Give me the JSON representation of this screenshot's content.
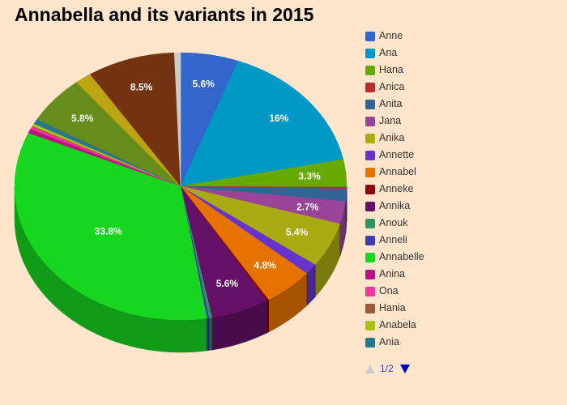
{
  "chart_data": {
    "type": "pie",
    "title": "Annabella and its variants in 2015",
    "three_d": true,
    "legend_position": "right",
    "slices": [
      {
        "name": "Anne",
        "value": 5.6,
        "color": "#3366cc",
        "label": "5.6%"
      },
      {
        "name": "Ana",
        "value": 16.0,
        "color": "#0099c6",
        "label": "16%"
      },
      {
        "name": "Hana",
        "value": 3.3,
        "color": "#66aa00",
        "label": "3.3%"
      },
      {
        "name": "Anica",
        "value": 0.2,
        "color": "#b82e2e",
        "label": ""
      },
      {
        "name": "Anita",
        "value": 1.5,
        "color": "#316395",
        "label": ""
      },
      {
        "name": "Jana",
        "value": 2.7,
        "color": "#994499",
        "label": "2.7%"
      },
      {
        "name": "Anika",
        "value": 5.4,
        "color": "#aaaa11",
        "label": "5.4%"
      },
      {
        "name": "Annette",
        "value": 1.3,
        "color": "#6633cc",
        "label": ""
      },
      {
        "name": "Annabel",
        "value": 4.8,
        "color": "#e67300",
        "label": "4.8%"
      },
      {
        "name": "Anneke",
        "value": 0.2,
        "color": "#8b0707",
        "label": ""
      },
      {
        "name": "Annika",
        "value": 5.6,
        "color": "#651067",
        "label": "5.6%"
      },
      {
        "name": "Anouk",
        "value": 0.3,
        "color": "#329262",
        "label": ""
      },
      {
        "name": "Anneli",
        "value": 0.2,
        "color": "#3b3eac",
        "label": ""
      },
      {
        "name": "Annabelle",
        "value": 33.8,
        "color": "#16d620",
        "label": "33.8%"
      },
      {
        "name": "Anina",
        "value": 0.5,
        "color": "#b91383",
        "label": ""
      },
      {
        "name": "Ona",
        "value": 0.3,
        "color": "#f4359e",
        "label": ""
      },
      {
        "name": "Hania",
        "value": 0.1,
        "color": "#9c5935",
        "label": ""
      },
      {
        "name": "Anabela",
        "value": 0.3,
        "color": "#a9c413",
        "label": ""
      },
      {
        "name": "Ania",
        "value": 0.6,
        "color": "#2a778d",
        "label": ""
      },
      {
        "name": "",
        "value": 5.8,
        "color": "#668d1c",
        "label": "5.8%"
      },
      {
        "name": "",
        "value": 1.6,
        "color": "#bea413",
        "label": ""
      },
      {
        "name": "",
        "value": 8.5,
        "color": "#743411",
        "label": "8.5%"
      },
      {
        "name": "",
        "value": 0.6,
        "color": "#cccccc",
        "label": ""
      }
    ]
  },
  "legend": {
    "items": [
      {
        "name": "Anne",
        "color": "#3366cc"
      },
      {
        "name": "Ana",
        "color": "#0099c6"
      },
      {
        "name": "Hana",
        "color": "#66aa00"
      },
      {
        "name": "Anica",
        "color": "#b82e2e"
      },
      {
        "name": "Anita",
        "color": "#316395"
      },
      {
        "name": "Jana",
        "color": "#994499"
      },
      {
        "name": "Anika",
        "color": "#aaaa11"
      },
      {
        "name": "Annette",
        "color": "#6633cc"
      },
      {
        "name": "Annabel",
        "color": "#e67300"
      },
      {
        "name": "Anneke",
        "color": "#8b0707"
      },
      {
        "name": "Annika",
        "color": "#651067"
      },
      {
        "name": "Anouk",
        "color": "#329262"
      },
      {
        "name": "Anneli",
        "color": "#3b3eac"
      },
      {
        "name": "Annabelle",
        "color": "#16d620"
      },
      {
        "name": "Anina",
        "color": "#b91383"
      },
      {
        "name": "Ona",
        "color": "#f4359e"
      },
      {
        "name": "Hania",
        "color": "#9c5935"
      },
      {
        "name": "Anabela",
        "color": "#a9c413"
      },
      {
        "name": "Ania",
        "color": "#2a778d"
      }
    ]
  },
  "pager": {
    "text": "1/2",
    "up_icon": "triangle-up-icon",
    "down_icon": "triangle-down-icon"
  }
}
